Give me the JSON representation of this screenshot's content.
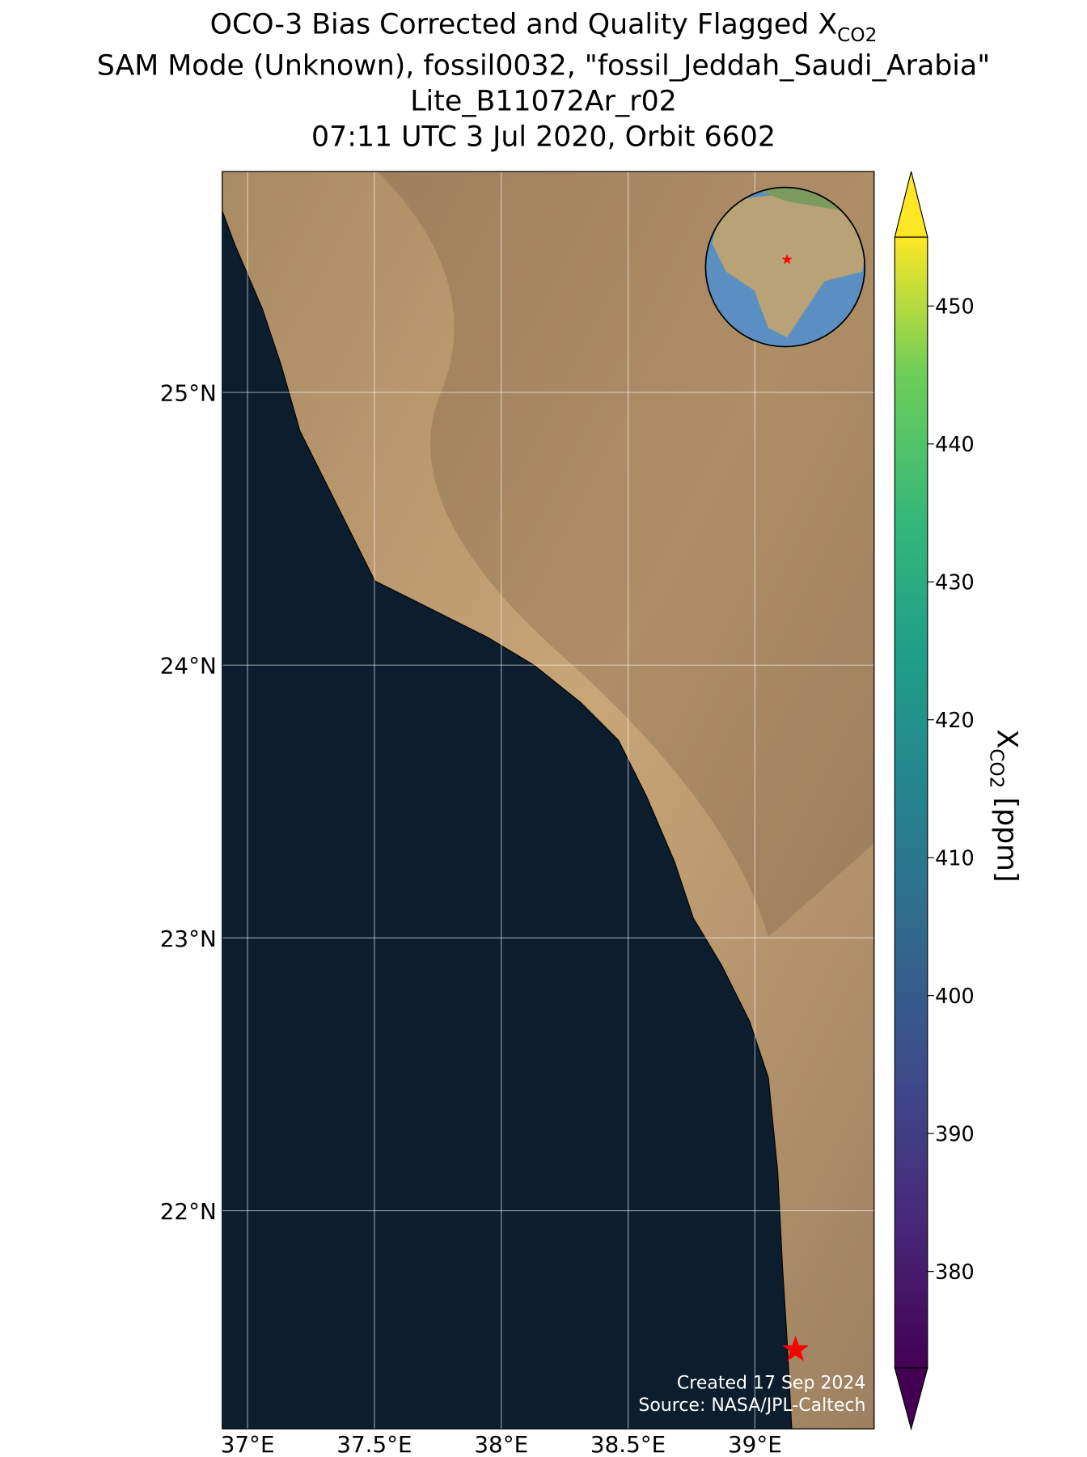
{
  "chart_data": {
    "type": "map",
    "title_lines": [
      "SAM Mode (Unknown), fossil0032, \"fossil_Jeddah_Saudi_Arabia\"",
      "Lite_B11072Ar_r02",
      "07:11 UTC 3 Jul 2020, Orbit 6602"
    ],
    "title_main": "OCO-3 Bias Corrected and Quality Flagged X",
    "title_sub": "CO2",
    "xlim": [
      36.9,
      39.47
    ],
    "ylim": [
      21.2,
      25.81
    ],
    "xticks": [
      {
        "value": 37,
        "label": "37°E"
      },
      {
        "value": 37.5,
        "label": "37.5°E"
      },
      {
        "value": 38,
        "label": "38°E"
      },
      {
        "value": 38.5,
        "label": "38.5°E"
      },
      {
        "value": 39,
        "label": "39°E"
      }
    ],
    "yticks": [
      {
        "value": 25,
        "label": "25°N"
      },
      {
        "value": 24,
        "label": "24°N"
      },
      {
        "value": 23,
        "label": "23°N"
      },
      {
        "value": 22,
        "label": "22°N"
      }
    ],
    "grid": true,
    "site": {
      "lon": 39.16,
      "lat": 21.49,
      "color": "#ff0000"
    },
    "colorbar": {
      "clim": [
        373,
        455
      ],
      "ticks": [
        380,
        390,
        400,
        410,
        420,
        430,
        440,
        450
      ],
      "label_main": "X",
      "label_sub": "CO2",
      "label_unit": " [ppm]"
    },
    "credits": [
      "Created 17 Sep 2024",
      "Source: NASA/JPL-Caltech"
    ]
  }
}
